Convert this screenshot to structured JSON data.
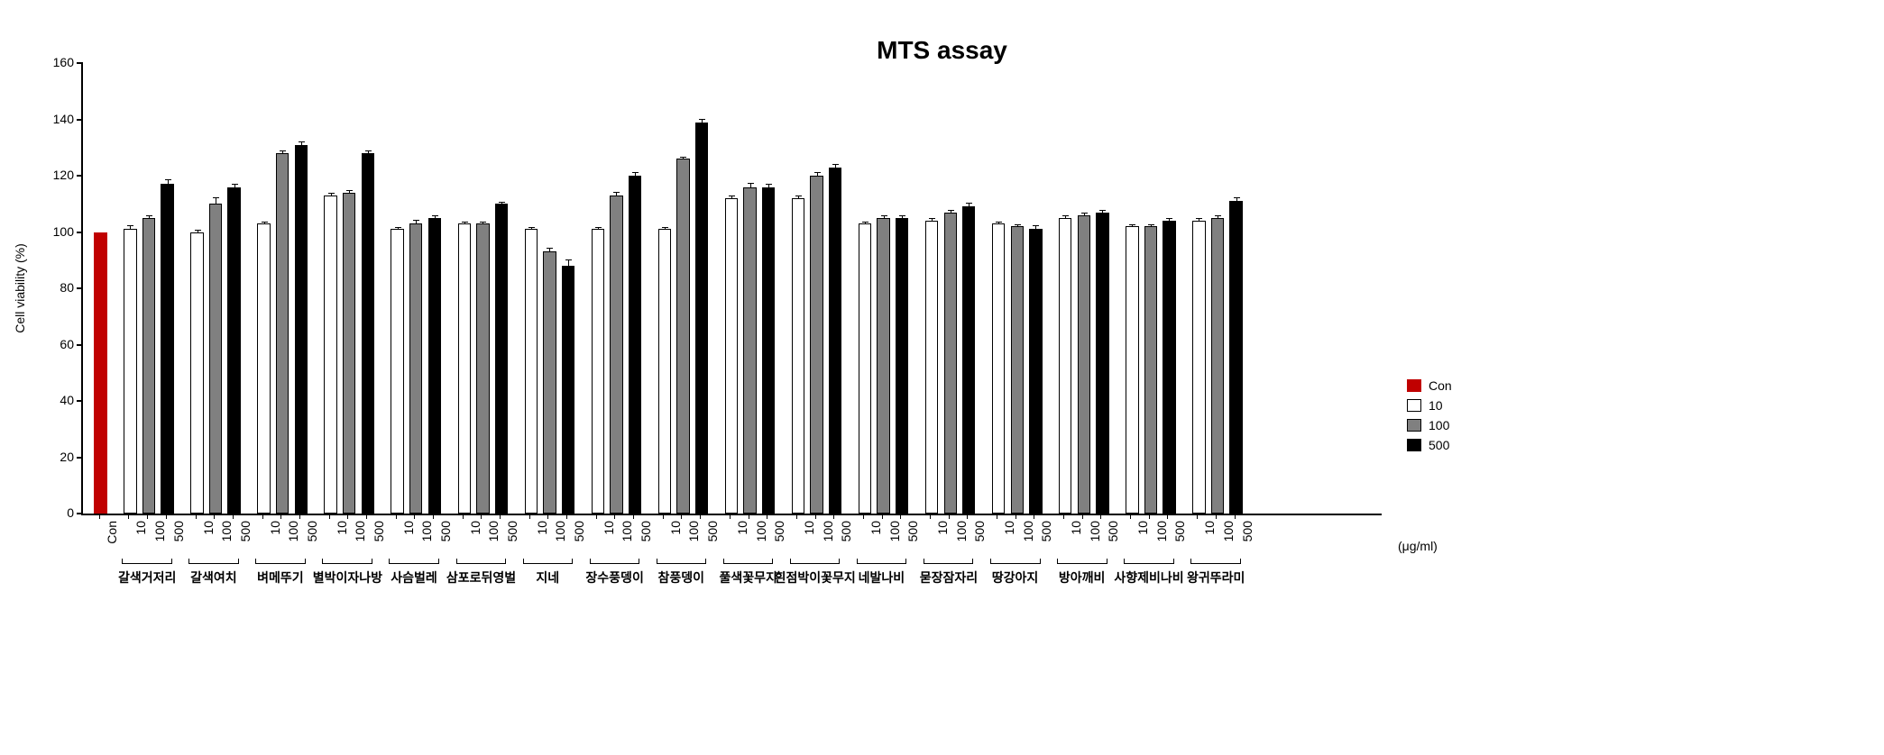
{
  "chart": {
    "type": "bar",
    "title": "MTS assay",
    "title_fontsize": 28,
    "title_fontweight": "bold",
    "ylabel": "Cell viability (%)",
    "ylabel_fontsize": 14,
    "unit_label": "(μg/ml)",
    "ylim": [
      0,
      160
    ],
    "ytick_step": 20,
    "yticks": [
      0,
      20,
      40,
      60,
      80,
      100,
      120,
      140,
      160
    ],
    "tick_fontsize": 14,
    "group_label_fontsize": 14,
    "background_color": "#ffffff",
    "axis_color": "#000000",
    "bar_border_color": "#000000",
    "bar_border_width": 1,
    "bar_width_ratio": 0.7,
    "error_bar_color": "#000000",
    "legend": [
      {
        "label": "Con",
        "fill": "#c00000",
        "border": "#c00000"
      },
      {
        "label": "10",
        "fill": "#ffffff",
        "border": "#000000"
      },
      {
        "label": "100",
        "fill": "#808080",
        "border": "#000000"
      },
      {
        "label": "500",
        "fill": "#000000",
        "border": "#000000"
      }
    ],
    "dose_labels": [
      "10",
      "100",
      "500"
    ],
    "con_label": "Con",
    "con_bar": {
      "fill": "#c00000",
      "border": "#c00000",
      "value": 100,
      "err": 0
    },
    "dose_colors": {
      "10": {
        "fill": "#ffffff",
        "border": "#000000"
      },
      "100": {
        "fill": "#808080",
        "border": "#000000"
      },
      "500": {
        "fill": "#000000",
        "border": "#000000"
      }
    },
    "groups": [
      {
        "name": "갈색거저리",
        "values": {
          "10": 101,
          "100": 105,
          "500": 117
        },
        "err": {
          "10": 1,
          "100": 0.5,
          "500": 1.5
        }
      },
      {
        "name": "갈색여치",
        "values": {
          "10": 100,
          "100": 110,
          "500": 116
        },
        "err": {
          "10": 0.5,
          "100": 2,
          "500": 0.7
        }
      },
      {
        "name": "벼메뚜기",
        "values": {
          "10": 103,
          "100": 128,
          "500": 131
        },
        "err": {
          "10": 0.5,
          "100": 0.5,
          "500": 0.7
        }
      },
      {
        "name": "별박이자나방",
        "values": {
          "10": 113,
          "100": 114,
          "500": 128
        },
        "err": {
          "10": 0.5,
          "100": 0.5,
          "500": 0.5
        }
      },
      {
        "name": "사슴벌레",
        "values": {
          "10": 101,
          "100": 103,
          "500": 105
        },
        "err": {
          "10": 0.5,
          "100": 1,
          "500": 0.5
        }
      },
      {
        "name": "삼포로뒤영벌",
        "values": {
          "10": 103,
          "100": 103,
          "500": 110
        },
        "err": {
          "10": 0.5,
          "100": 0.5,
          "500": 0.5
        }
      },
      {
        "name": "지네",
        "values": {
          "10": 101,
          "100": 93,
          "500": 88
        },
        "err": {
          "10": 0.5,
          "100": 1,
          "500": 2
        }
      },
      {
        "name": "장수풍뎅이",
        "values": {
          "10": 101,
          "100": 113,
          "500": 120
        },
        "err": {
          "10": 0.5,
          "100": 1,
          "500": 1
        }
      },
      {
        "name": "참풍뎅이",
        "values": {
          "10": 101,
          "100": 126,
          "500": 139
        },
        "err": {
          "10": 0.5,
          "100": 0.5,
          "500": 0.7
        }
      },
      {
        "name": "풀색꽃무지",
        "values": {
          "10": 112,
          "100": 116,
          "500": 116
        },
        "err": {
          "10": 0.5,
          "100": 1,
          "500": 0.7
        }
      },
      {
        "name": "흰점박이꽃무지",
        "values": {
          "10": 112,
          "100": 120,
          "500": 123
        },
        "err": {
          "10": 0.5,
          "100": 1,
          "500": 1
        }
      },
      {
        "name": "네발나비",
        "values": {
          "10": 103,
          "100": 105,
          "500": 105
        },
        "err": {
          "10": 0.5,
          "100": 0.5,
          "500": 0.5
        }
      },
      {
        "name": "묻장잠자리",
        "values": {
          "10": 104,
          "100": 107,
          "500": 109
        },
        "err": {
          "10": 0.5,
          "100": 0.5,
          "500": 1
        }
      },
      {
        "name": "땅강아지",
        "values": {
          "10": 103,
          "100": 102,
          "500": 101
        },
        "err": {
          "10": 0.5,
          "100": 0.5,
          "500": 1
        }
      },
      {
        "name": "방아깨비",
        "values": {
          "10": 105,
          "100": 106,
          "500": 107
        },
        "err": {
          "10": 0.5,
          "100": 0.5,
          "500": 0.5
        }
      },
      {
        "name": "사향제비나비",
        "values": {
          "10": 102,
          "100": 102,
          "500": 104
        },
        "err": {
          "10": 0.5,
          "100": 0.5,
          "500": 0.5
        }
      },
      {
        "name": "왕귀뚜라미",
        "values": {
          "10": 104,
          "100": 105,
          "500": 111
        },
        "err": {
          "10": 0.5,
          "100": 0.5,
          "500": 1
        }
      }
    ]
  }
}
